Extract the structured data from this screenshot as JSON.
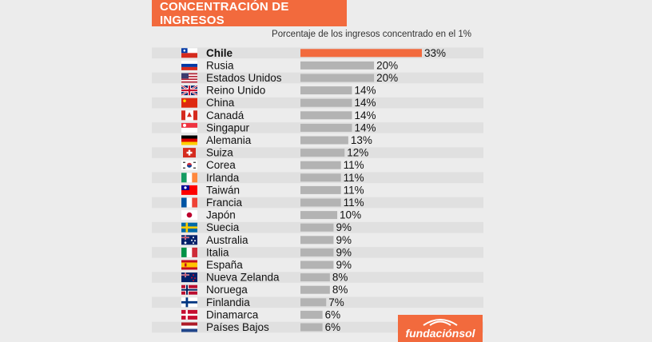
{
  "header": {
    "title": "CONCENTRACIÓN DE INGRESOS"
  },
  "chart_data": {
    "type": "bar",
    "orientation": "horizontal",
    "title": "CONCENTRACIÓN DE INGRESOS",
    "subtitle": "Porcentaje de los ingresos concentrado en el 1%",
    "categories": [
      "Chile",
      "Rusia",
      "Estados Unidos",
      "Reino Unido",
      "China",
      "Canadá",
      "Singapur",
      "Alemania",
      "Suiza",
      "Corea",
      "Irlanda",
      "Taiwán",
      "Francia",
      "Japón",
      "Suecia",
      "Australia",
      "Italia",
      "España",
      "Nueva Zelanda",
      "Noruega",
      "Finlandia",
      "Dinamarca",
      "Países Bajos"
    ],
    "values": [
      33,
      20,
      20,
      14,
      14,
      14,
      14,
      13,
      12,
      11,
      11,
      11,
      11,
      10,
      9,
      9,
      9,
      9,
      8,
      8,
      7,
      6,
      6
    ],
    "value_labels": [
      "33%",
      "20%",
      "20%",
      "14%",
      "14%",
      "14%",
      "14%",
      "13%",
      "12%",
      "11%",
      "11%",
      "11%",
      "11%",
      "10%",
      "9%",
      "9%",
      "9%",
      "9%",
      "8%",
      "8%",
      "7%",
      "6%",
      "6%"
    ],
    "highlight_category": "Chile",
    "colors": {
      "highlight": "#f26a3d",
      "bar": "#b3b3b3",
      "stripe": "#e0e0e0",
      "background": "#ececec"
    },
    "flag_icons": [
      "chile-flag-icon",
      "russia-flag-icon",
      "usa-flag-icon",
      "uk-flag-icon",
      "china-flag-icon",
      "canada-flag-icon",
      "singapore-flag-icon",
      "germany-flag-icon",
      "switzerland-flag-icon",
      "korea-flag-icon",
      "ireland-flag-icon",
      "taiwan-flag-icon",
      "france-flag-icon",
      "japan-flag-icon",
      "sweden-flag-icon",
      "australia-flag-icon",
      "italy-flag-icon",
      "spain-flag-icon",
      "new-zealand-flag-icon",
      "norway-flag-icon",
      "finland-flag-icon",
      "denmark-flag-icon",
      "netherlands-flag-icon"
    ],
    "xlim": [
      0,
      33
    ],
    "grid": false,
    "legend": "none"
  },
  "logo": {
    "text": "fundaciónsol",
    "icon": "eye-logo-icon"
  }
}
